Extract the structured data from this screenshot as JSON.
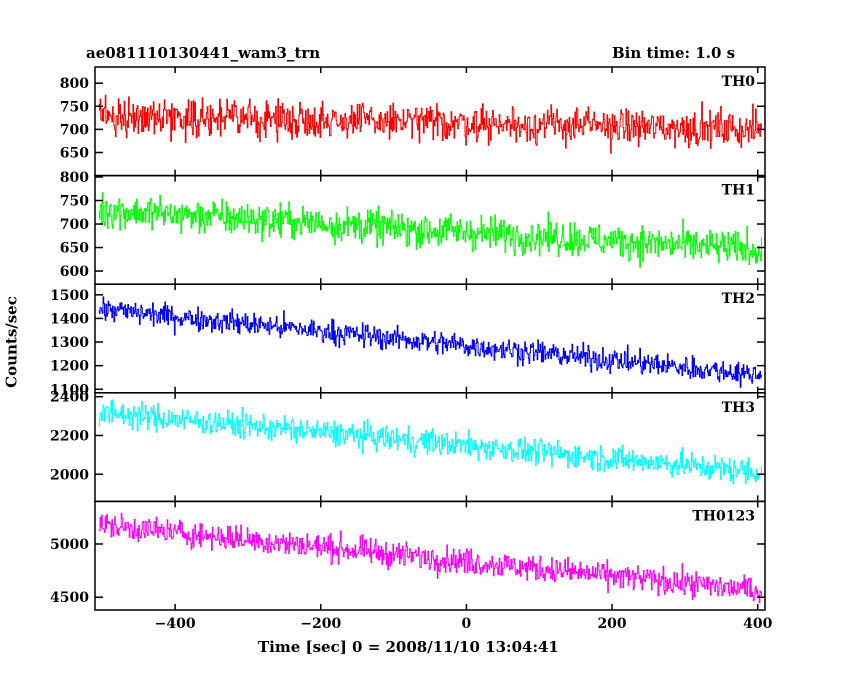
{
  "header": {
    "title": "ae081110130441_wam3_trn",
    "bin_time": "Bin time: 1.0 s"
  },
  "chart_data": {
    "type": "line",
    "xlabel": "Time [sec] 0 = 2008/11/10 13:04:41",
    "ylabel": "Counts/sec",
    "xlim": [
      -510,
      410
    ],
    "x_ticks": [
      -400,
      -200,
      0,
      200,
      400
    ],
    "x_step": 1.0,
    "panels": [
      {
        "name": "TH0",
        "color": "#ff0000",
        "ylim": [
          600,
          835
        ],
        "y_ticks": [
          650,
          700,
          750,
          800
        ],
        "trend_start": 730,
        "trend_end": 700,
        "noise": 35
      },
      {
        "name": "TH1",
        "color": "#00ff00",
        "ylim": [
          572,
          803
        ],
        "y_ticks": [
          600,
          650,
          700,
          750,
          800
        ],
        "trend_start": 730,
        "trend_end": 645,
        "noise": 33
      },
      {
        "name": "TH2",
        "color": "#0000ff",
        "ylim": [
          1085,
          1545
        ],
        "y_ticks": [
          1100,
          1200,
          1300,
          1400,
          1500
        ],
        "trend_start": 1440,
        "trend_end": 1160,
        "noise": 45
      },
      {
        "name": "TH3",
        "color": "#00ffff",
        "ylim": [
          1860,
          2420
        ],
        "y_ticks": [
          2000,
          2200,
          2400
        ],
        "trend_start": 2320,
        "trend_end": 2010,
        "noise": 60
      },
      {
        "name": "TH0123",
        "color": "#ff00ff",
        "ylim": [
          4380,
          5400
        ],
        "y_ticks": [
          4500,
          5000
        ],
        "trend_start": 5180,
        "trend_end": 4560,
        "noise": 110
      }
    ]
  }
}
